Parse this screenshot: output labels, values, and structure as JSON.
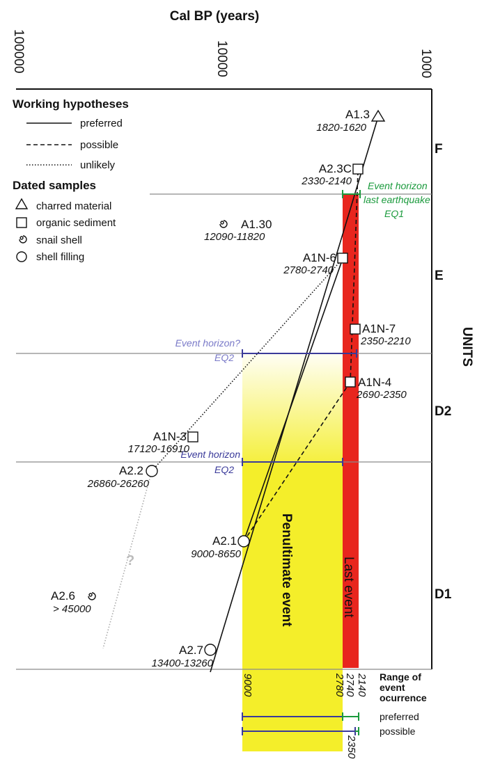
{
  "chart_data": {
    "type": "scatter",
    "title": "Cal BP (years)",
    "x_scale": "log",
    "x_axis_label": "Cal BP (years)",
    "x_ticks": [
      "100000",
      "10000",
      "1000"
    ],
    "x_range": [
      100000,
      1000
    ],
    "y_axis_label": "UNITS",
    "units": [
      {
        "name": "F"
      },
      {
        "name": "E"
      },
      {
        "name": "D2"
      },
      {
        "name": "D1"
      }
    ],
    "legend": {
      "hypotheses_title": "Working hypotheses",
      "hypotheses": [
        {
          "style": "solid",
          "label": "preferred"
        },
        {
          "style": "dashed",
          "label": "possible"
        },
        {
          "style": "dotted",
          "label": "unlikely"
        }
      ],
      "samples_title": "Dated samples",
      "samples": [
        {
          "marker": "triangle",
          "label": "charred material"
        },
        {
          "marker": "square",
          "label": "organic sediment"
        },
        {
          "marker": "spiral",
          "label": "snail shell"
        },
        {
          "marker": "circle",
          "label": "shell filling"
        }
      ]
    },
    "samples": [
      {
        "id": "A1.3",
        "age": "1820-1620",
        "marker": "triangle",
        "age_bp": 1720
      },
      {
        "id": "A2.3C",
        "age": "2330-2140",
        "marker": "square",
        "age_bp": 2240
      },
      {
        "id": "A1.30",
        "age": "12090-11820",
        "marker": "spiral",
        "age_bp": 11955
      },
      {
        "id": "A1N-6",
        "age": "2780-2740",
        "marker": "square",
        "age_bp": 2760
      },
      {
        "id": "A1N-7",
        "age": "2350-2210",
        "marker": "square",
        "age_bp": 2280
      },
      {
        "id": "A1N-4",
        "age": "2690-2350",
        "marker": "square",
        "age_bp": 2520
      },
      {
        "id": "A1N-3",
        "age": "17120-16910",
        "marker": "square",
        "age_bp": 17015
      },
      {
        "id": "A2.2",
        "age": "26860-26260",
        "marker": "circle",
        "age_bp": 26560
      },
      {
        "id": "A2.1",
        "age": "9000-8650",
        "marker": "circle",
        "age_bp": 8825
      },
      {
        "id": "A2.6",
        "age": "> 45000",
        "marker": "spiral",
        "age_bp": 45000
      },
      {
        "id": "A2.7",
        "age": "13400-13260",
        "marker": "circle",
        "age_bp": 13330
      }
    ],
    "event_horizons": [
      {
        "label": "Event horizon",
        "label2": "last earthquake",
        "label3": "EQ1",
        "from_bp": 2780,
        "to_bp": 2140
      },
      {
        "label": "Event horizon?",
        "label2": "EQ2",
        "from_bp": 9000,
        "to_bp": 2350
      },
      {
        "label": "Event horizon",
        "label2": "EQ2",
        "from_bp": 9000,
        "to_bp": 2780
      }
    ],
    "events": [
      {
        "name": "Penultimate event",
        "from_bp": 9000,
        "to_bp": 2780
      },
      {
        "name": "Last event",
        "from_bp": 2740,
        "to_bp": 2140
      }
    ],
    "range_title": [
      "Range of",
      "event",
      "ocurrence"
    ],
    "range_ticks": [
      "9000",
      "2780",
      "2740",
      "2140",
      "2350"
    ],
    "ranges": [
      {
        "label": "preferred",
        "from_bp": 9000,
        "to_bp": 2140
      },
      {
        "label": "possible",
        "from_bp": 9000,
        "to_bp": 2350
      }
    ],
    "unknown_mark": "?",
    "colors": {
      "last_event": "#e8261e",
      "penultimate_event": "#f4ee2a",
      "eq1": "#1a9a3c",
      "eq2": "#3a3a9a"
    }
  }
}
